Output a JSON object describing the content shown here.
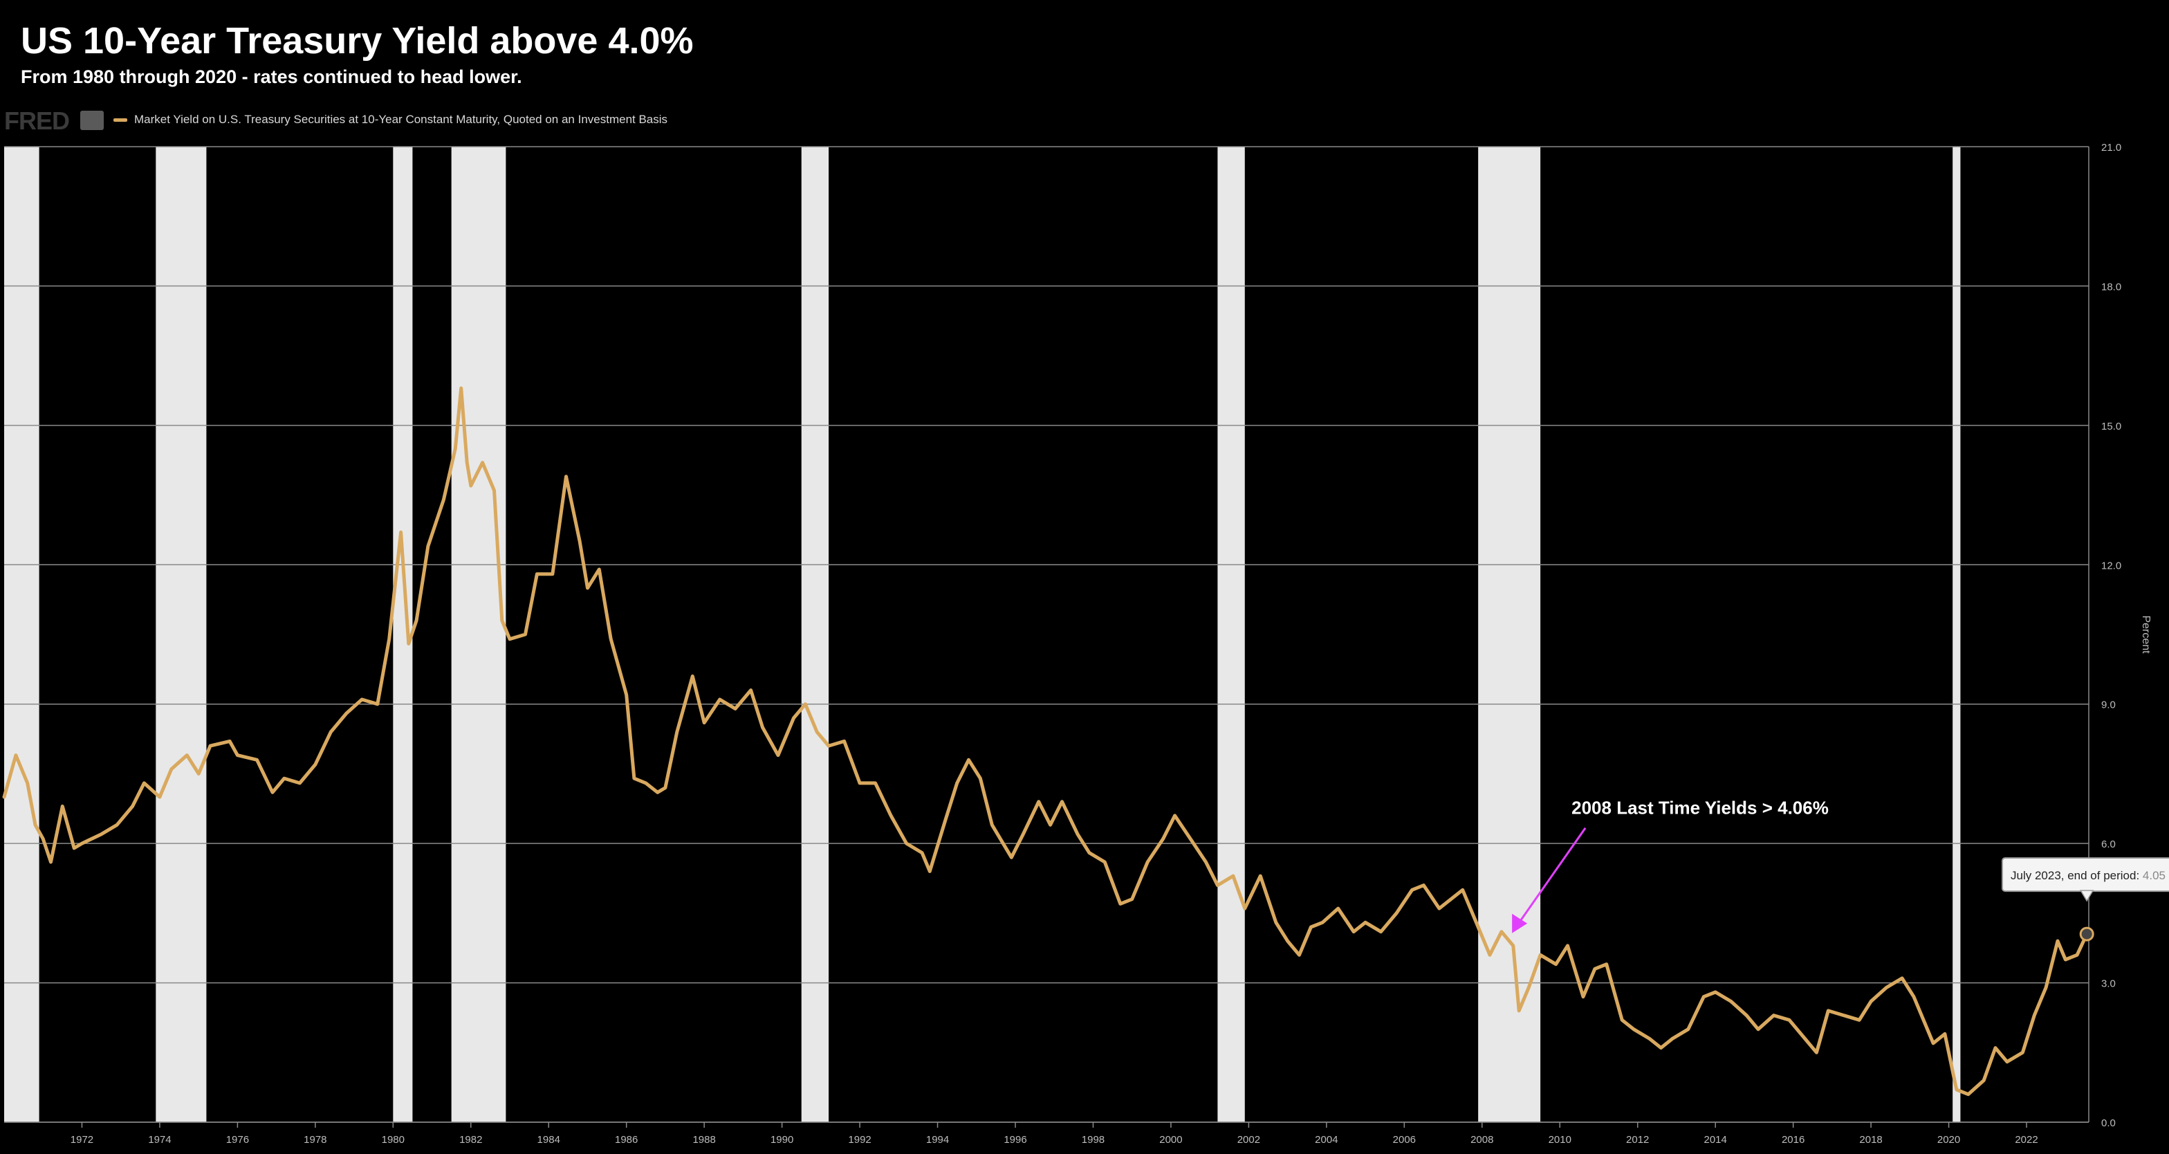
{
  "chart_data": {
    "type": "line",
    "title": "US 10-Year Treasury Yield above 4.0%",
    "subtitle": "From 1980 through 2020 - rates continued to head lower.",
    "source_logo": "FRED",
    "legend": [
      "Market Yield on U.S. Treasury Securities at 10-Year Constant Maturity, Quoted on an Investment Basis"
    ],
    "ylabel": "Percent",
    "xlim": [
      1970.0,
      2023.6
    ],
    "ylim": [
      0,
      21
    ],
    "x_ticks": [
      1972,
      1974,
      1976,
      1978,
      1980,
      1982,
      1984,
      1986,
      1988,
      1990,
      1992,
      1994,
      1996,
      1998,
      2000,
      2002,
      2004,
      2006,
      2008,
      2010,
      2012,
      2014,
      2016,
      2018,
      2020,
      2022
    ],
    "y_ticks": [
      "0.0",
      "3.0",
      "6.0",
      "9.0",
      "12.0",
      "15.0",
      "18.0",
      "21.0"
    ],
    "grid": true,
    "recessions": [
      [
        1970.0,
        1970.9
      ],
      [
        1973.9,
        1975.2
      ],
      [
        1980.0,
        1980.5
      ],
      [
        1981.5,
        1982.9
      ],
      [
        1990.5,
        1991.2
      ],
      [
        2001.2,
        2001.9
      ],
      [
        2007.9,
        2009.5
      ],
      [
        2020.1,
        2020.3
      ]
    ],
    "series": [
      {
        "name": "Market Yield on U.S. Treasury Securities at 10-Year Constant Maturity, Quoted on an Investment Basis",
        "color": "#d9a95f",
        "points": [
          [
            1970.0,
            7.0
          ],
          [
            1970.3,
            7.9
          ],
          [
            1970.6,
            7.3
          ],
          [
            1970.8,
            6.4
          ],
          [
            1971.0,
            6.1
          ],
          [
            1971.2,
            5.6
          ],
          [
            1971.5,
            6.8
          ],
          [
            1971.8,
            5.9
          ],
          [
            1972.0,
            6.0
          ],
          [
            1972.5,
            6.2
          ],
          [
            1972.9,
            6.4
          ],
          [
            1973.3,
            6.8
          ],
          [
            1973.6,
            7.3
          ],
          [
            1974.0,
            7.0
          ],
          [
            1974.3,
            7.6
          ],
          [
            1974.7,
            7.9
          ],
          [
            1975.0,
            7.5
          ],
          [
            1975.3,
            8.1
          ],
          [
            1975.8,
            8.2
          ],
          [
            1976.0,
            7.9
          ],
          [
            1976.5,
            7.8
          ],
          [
            1976.9,
            7.1
          ],
          [
            1977.2,
            7.4
          ],
          [
            1977.6,
            7.3
          ],
          [
            1978.0,
            7.7
          ],
          [
            1978.4,
            8.4
          ],
          [
            1978.8,
            8.8
          ],
          [
            1979.2,
            9.1
          ],
          [
            1979.6,
            9.0
          ],
          [
            1979.9,
            10.4
          ],
          [
            1980.2,
            12.7
          ],
          [
            1980.4,
            10.3
          ],
          [
            1980.6,
            10.8
          ],
          [
            1980.9,
            12.4
          ],
          [
            1981.3,
            13.4
          ],
          [
            1981.6,
            14.5
          ],
          [
            1981.75,
            15.8
          ],
          [
            1981.9,
            14.2
          ],
          [
            1982.0,
            13.7
          ],
          [
            1982.3,
            14.2
          ],
          [
            1982.6,
            13.6
          ],
          [
            1982.8,
            10.8
          ],
          [
            1983.0,
            10.4
          ],
          [
            1983.4,
            10.5
          ],
          [
            1983.7,
            11.8
          ],
          [
            1984.1,
            11.8
          ],
          [
            1984.45,
            13.9
          ],
          [
            1984.8,
            12.5
          ],
          [
            1985.0,
            11.5
          ],
          [
            1985.3,
            11.9
          ],
          [
            1985.6,
            10.4
          ],
          [
            1986.0,
            9.2
          ],
          [
            1986.2,
            7.4
          ],
          [
            1986.5,
            7.3
          ],
          [
            1986.8,
            7.1
          ],
          [
            1987.0,
            7.2
          ],
          [
            1987.3,
            8.4
          ],
          [
            1987.7,
            9.6
          ],
          [
            1988.0,
            8.6
          ],
          [
            1988.4,
            9.1
          ],
          [
            1988.8,
            8.9
          ],
          [
            1989.2,
            9.3
          ],
          [
            1989.5,
            8.5
          ],
          [
            1989.9,
            7.9
          ],
          [
            1990.3,
            8.7
          ],
          [
            1990.6,
            9.0
          ],
          [
            1990.9,
            8.4
          ],
          [
            1991.2,
            8.1
          ],
          [
            1991.6,
            8.2
          ],
          [
            1992.0,
            7.3
          ],
          [
            1992.4,
            7.3
          ],
          [
            1992.8,
            6.6
          ],
          [
            1993.2,
            6.0
          ],
          [
            1993.6,
            5.8
          ],
          [
            1993.8,
            5.4
          ],
          [
            1994.2,
            6.5
          ],
          [
            1994.5,
            7.3
          ],
          [
            1994.8,
            7.8
          ],
          [
            1995.1,
            7.4
          ],
          [
            1995.4,
            6.4
          ],
          [
            1995.9,
            5.7
          ],
          [
            1996.2,
            6.2
          ],
          [
            1996.6,
            6.9
          ],
          [
            1996.9,
            6.4
          ],
          [
            1997.2,
            6.9
          ],
          [
            1997.6,
            6.2
          ],
          [
            1997.9,
            5.8
          ],
          [
            1998.3,
            5.6
          ],
          [
            1998.7,
            4.7
          ],
          [
            1999.0,
            4.8
          ],
          [
            1999.4,
            5.6
          ],
          [
            1999.8,
            6.1
          ],
          [
            2000.1,
            6.6
          ],
          [
            2000.5,
            6.1
          ],
          [
            2000.9,
            5.6
          ],
          [
            2001.2,
            5.1
          ],
          [
            2001.6,
            5.3
          ],
          [
            2001.9,
            4.6
          ],
          [
            2002.3,
            5.3
          ],
          [
            2002.7,
            4.3
          ],
          [
            2003.0,
            3.9
          ],
          [
            2003.3,
            3.6
          ],
          [
            2003.6,
            4.2
          ],
          [
            2003.9,
            4.3
          ],
          [
            2004.3,
            4.6
          ],
          [
            2004.7,
            4.1
          ],
          [
            2005.0,
            4.3
          ],
          [
            2005.4,
            4.1
          ],
          [
            2005.8,
            4.5
          ],
          [
            2006.2,
            5.0
          ],
          [
            2006.5,
            5.1
          ],
          [
            2006.9,
            4.6
          ],
          [
            2007.2,
            4.8
          ],
          [
            2007.5,
            5.0
          ],
          [
            2007.9,
            4.2
          ],
          [
            2008.2,
            3.6
          ],
          [
            2008.5,
            4.1
          ],
          [
            2008.8,
            3.8
          ],
          [
            2008.95,
            2.4
          ],
          [
            2009.2,
            2.9
          ],
          [
            2009.5,
            3.6
          ],
          [
            2009.9,
            3.4
          ],
          [
            2010.2,
            3.8
          ],
          [
            2010.6,
            2.7
          ],
          [
            2010.9,
            3.3
          ],
          [
            2011.2,
            3.4
          ],
          [
            2011.6,
            2.2
          ],
          [
            2011.9,
            2.0
          ],
          [
            2012.3,
            1.8
          ],
          [
            2012.6,
            1.6
          ],
          [
            2012.9,
            1.8
          ],
          [
            2013.3,
            2.0
          ],
          [
            2013.7,
            2.7
          ],
          [
            2014.0,
            2.8
          ],
          [
            2014.4,
            2.6
          ],
          [
            2014.8,
            2.3
          ],
          [
            2015.1,
            2.0
          ],
          [
            2015.5,
            2.3
          ],
          [
            2015.9,
            2.2
          ],
          [
            2016.3,
            1.8
          ],
          [
            2016.6,
            1.5
          ],
          [
            2016.9,
            2.4
          ],
          [
            2017.3,
            2.3
          ],
          [
            2017.7,
            2.2
          ],
          [
            2018.0,
            2.6
          ],
          [
            2018.4,
            2.9
          ],
          [
            2018.8,
            3.1
          ],
          [
            2019.1,
            2.7
          ],
          [
            2019.6,
            1.7
          ],
          [
            2019.9,
            1.9
          ],
          [
            2020.2,
            0.7
          ],
          [
            2020.5,
            0.6
          ],
          [
            2020.9,
            0.9
          ],
          [
            2021.2,
            1.6
          ],
          [
            2021.5,
            1.3
          ],
          [
            2021.9,
            1.5
          ],
          [
            2022.2,
            2.3
          ],
          [
            2022.5,
            2.9
          ],
          [
            2022.8,
            3.9
          ],
          [
            2023.0,
            3.5
          ],
          [
            2023.3,
            3.6
          ],
          [
            2023.55,
            4.05
          ]
        ]
      }
    ],
    "annotations": [
      {
        "text": "2008 Last Time Yields > 4.06%",
        "x": 2008.7,
        "y": 4.1,
        "color": "#e040fb"
      }
    ],
    "tooltip": {
      "label": "July 2023, end of period:",
      "value": "4.05",
      "x": 2023.55,
      "y": 4.05
    }
  }
}
